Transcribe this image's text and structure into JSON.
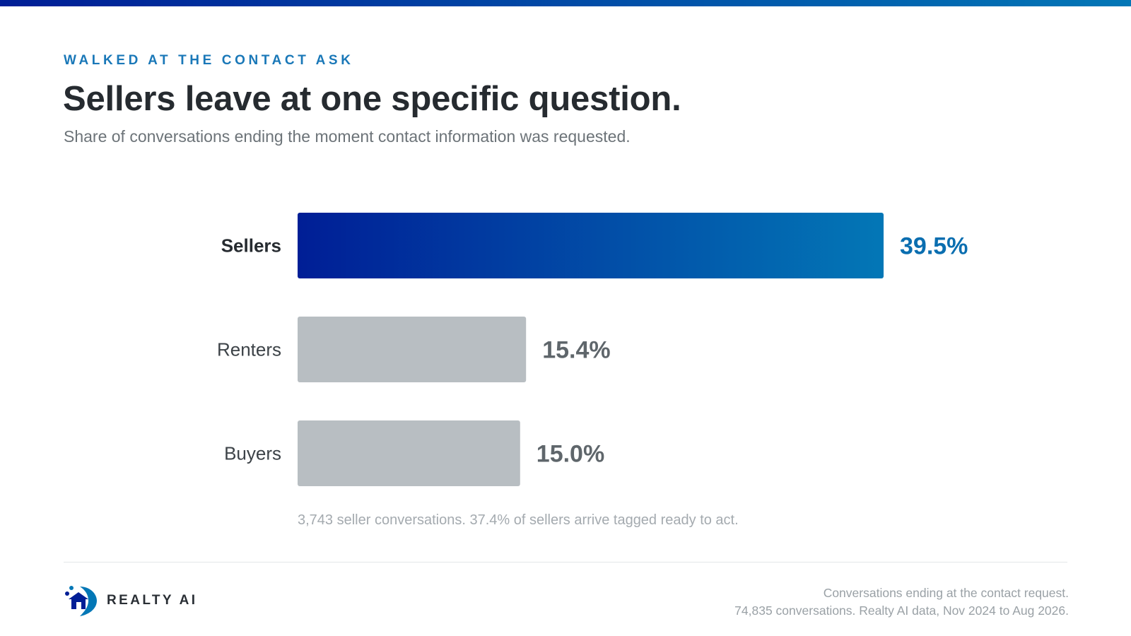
{
  "colors": {
    "accent": "#1a78b8",
    "gradient_start": "#001e96",
    "gradient_end": "#0377b6",
    "highlight_value": "#0a6eb0",
    "muted_bar": "#b8bec2",
    "muted_value": "#5f666b",
    "highlight_label": "#262b30",
    "muted_label": "#3d4348"
  },
  "header": {
    "eyebrow": "WALKED AT THE CONTACT ASK",
    "title": "Sellers leave at one specific question.",
    "subtitle": "Share of conversations ending the moment contact information was requested."
  },
  "chart_data": {
    "type": "bar",
    "orientation": "horizontal",
    "categories": [
      "Sellers",
      "Renters",
      "Buyers"
    ],
    "values": [
      39.5,
      15.4,
      15.0
    ],
    "value_labels": [
      "39.5%",
      "15.4%",
      "15.0%"
    ],
    "highlight": "Sellers",
    "xlim": [
      0,
      39.5
    ],
    "grid": false,
    "note": "3,743 seller conversations. 37.4% of sellers arrive tagged ready to act."
  },
  "footer": {
    "logo_icon": "house-location-icon",
    "logo_text": "REALTY AI",
    "note_line1": "Conversations ending at the contact request.",
    "note_line2": "74,835 conversations. Realty AI data, Nov 2024 to Aug 2026."
  }
}
